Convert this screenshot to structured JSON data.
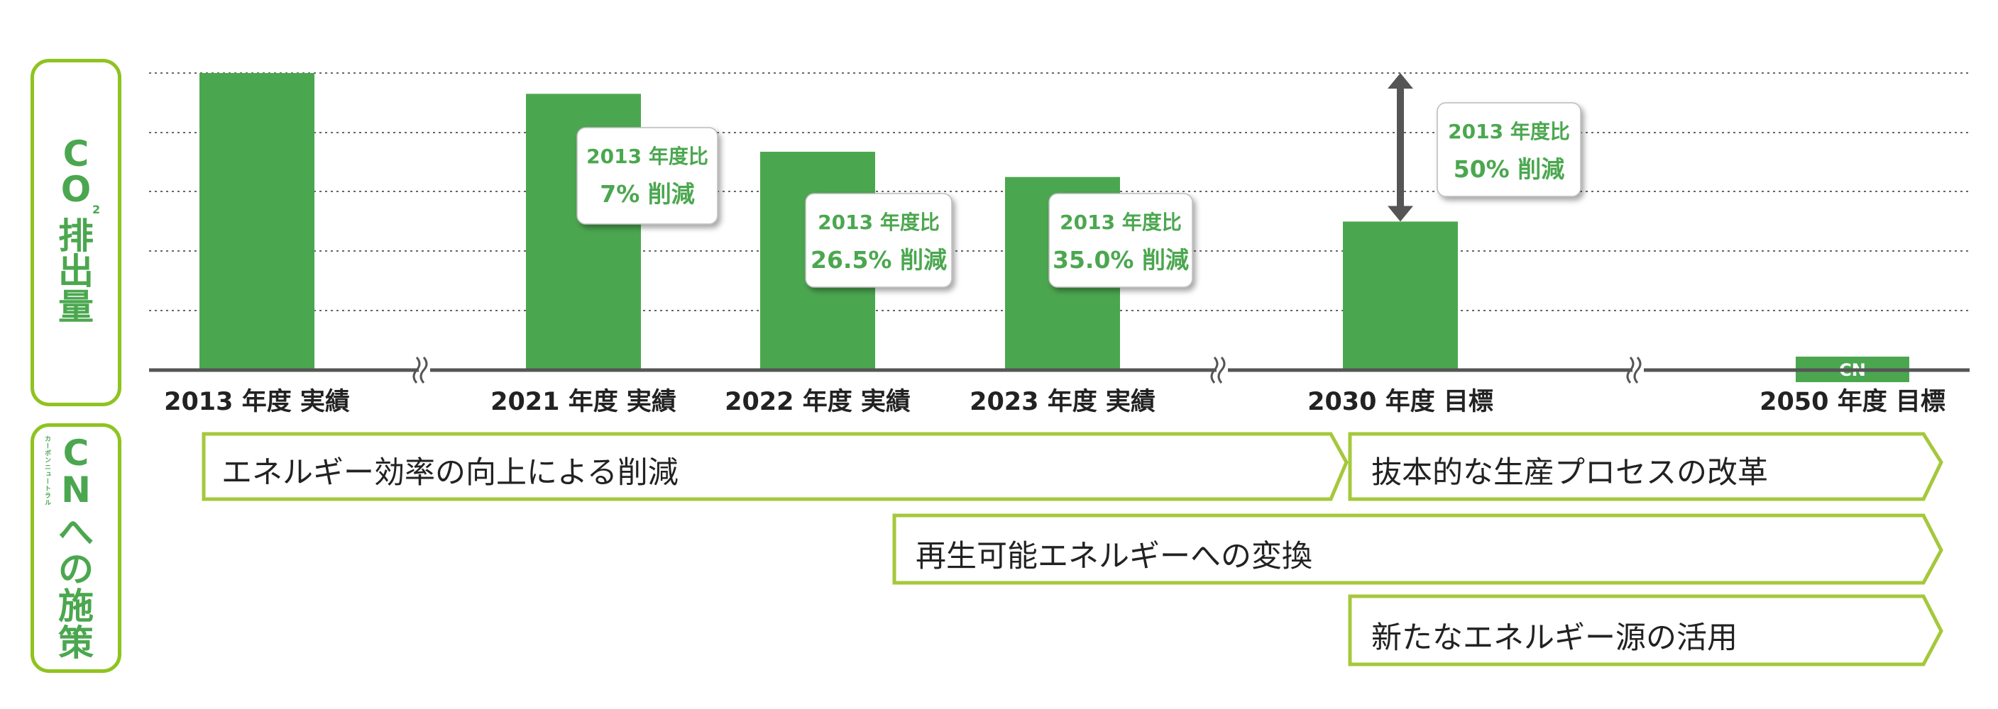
{
  "side_labels": {
    "co2": {
      "chars": [
        "C",
        "O",
        "排",
        "出",
        "量"
      ],
      "subscript": "2"
    },
    "cn": {
      "chars": [
        "C",
        "N",
        "へ",
        "の",
        "施",
        "策"
      ],
      "ruby": "カーボンニュートラル"
    }
  },
  "chart_data": {
    "type": "bar",
    "categories": [
      "2013 年度 実績",
      "2021 年度 実績",
      "2022 年度 実績",
      "2023 年度 実績",
      "2030 年度 目標",
      "2050 年度 目標"
    ],
    "values": [
      100,
      93,
      73.5,
      65,
      50,
      0
    ],
    "value_unit": "% of 2013",
    "ylim": [
      0,
      100
    ],
    "grid": "dotted horizontal",
    "bar_color": "#4ba74f",
    "cn_label": "CN",
    "callouts": [
      {
        "category": "2021 年度 実績",
        "line1": "2013 年度比",
        "line2": "7% 削減"
      },
      {
        "category": "2022 年度 実績",
        "line1": "2013 年度比",
        "line2": "26.5% 削減"
      },
      {
        "category": "2023 年度 実績",
        "line1": "2013 年度比",
        "line2": "35.0% 削減"
      },
      {
        "category": "2030 年度 目標",
        "line1": "2013 年度比",
        "line2": "50% 削減"
      }
    ]
  },
  "measures": [
    {
      "label": "エネルギー効率の向上による削減"
    },
    {
      "label": "抜本的な生産プロセスの改革"
    },
    {
      "label": "再生可能エネルギーへの変換"
    },
    {
      "label": "新たなエネルギー源の活用"
    }
  ],
  "colors": {
    "green": "#4ba74f",
    "lime": "#a5c83b",
    "axis": "#555555"
  }
}
